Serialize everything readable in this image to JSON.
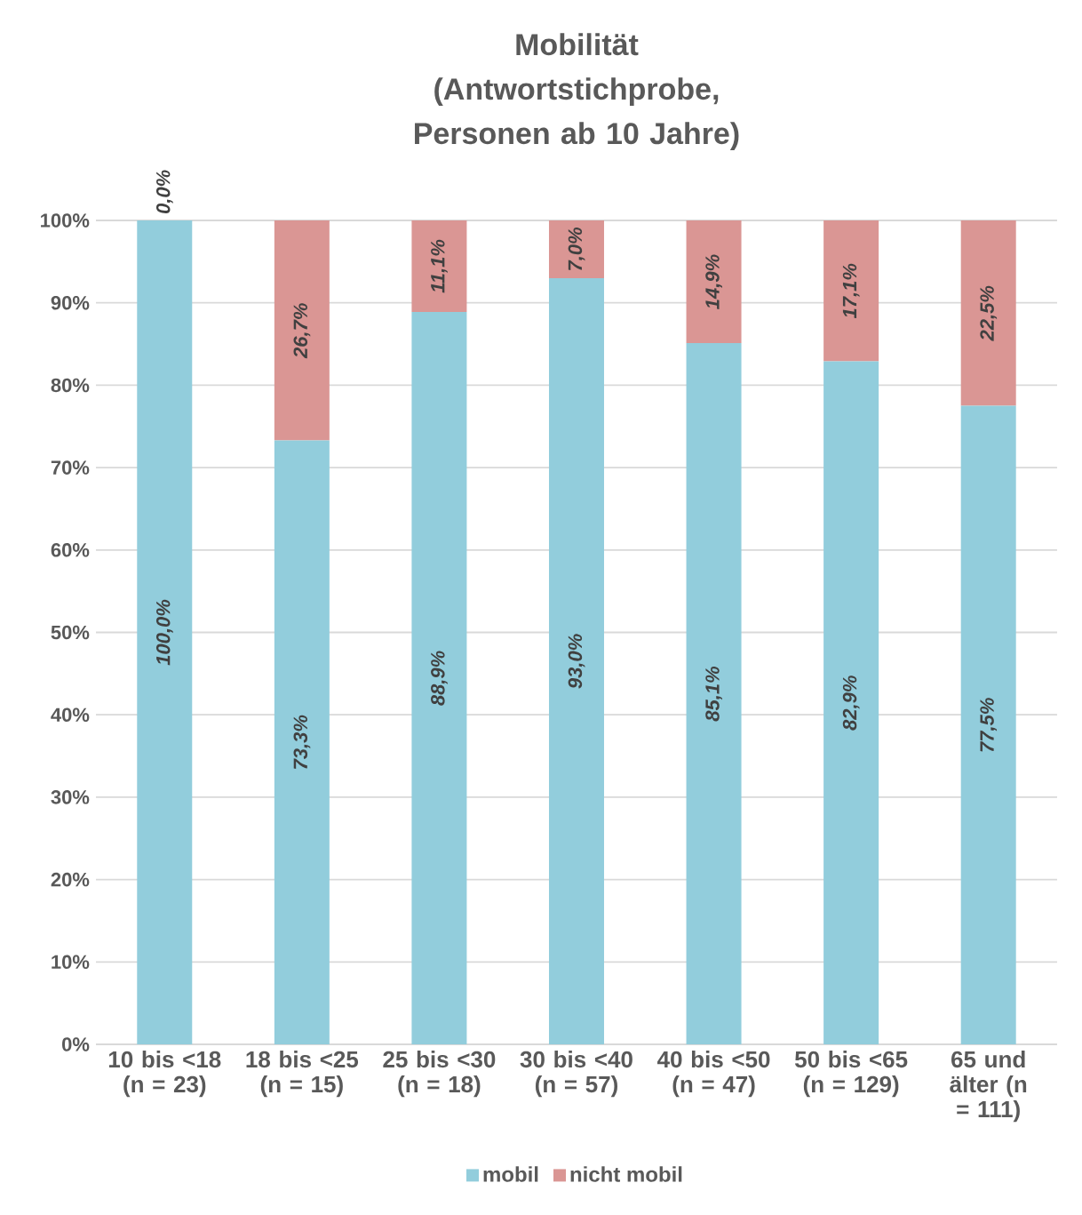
{
  "chart_data": {
    "type": "bar",
    "stacked": true,
    "title": "Mobilität (Antwortstichprobe, Personen ab 10 Jahre)",
    "categories": [
      "10 bis <18 (n = 23)",
      "18 bis <25 (n = 15)",
      "25 bis <30 (n = 18)",
      "30 bis <40 (n = 57)",
      "40 bis <50 (n = 47)",
      "50 bis <65 (n = 129)",
      "65 und älter (n = 111)"
    ],
    "series": [
      {
        "name": "mobil",
        "color": "#92cddc",
        "values": [
          100.0,
          73.3,
          88.9,
          93.0,
          85.1,
          82.9,
          77.5
        ],
        "value_labels": [
          "100,0%",
          "73,3%",
          "88,9%",
          "93,0%",
          "85,1%",
          "82,9%",
          "77,5%"
        ]
      },
      {
        "name": "nicht mobil",
        "color": "#da9694",
        "values": [
          0.0,
          26.7,
          11.1,
          7.0,
          14.9,
          17.1,
          22.5
        ],
        "value_labels": [
          "0,0%",
          "26,7%",
          "11,1%",
          "7,0%",
          "14,9%",
          "17,1%",
          "22,5%"
        ]
      }
    ],
    "ylim": [
      0,
      100
    ],
    "yticks": [
      {
        "value": 0,
        "label": "0%"
      },
      {
        "value": 10,
        "label": "10%"
      },
      {
        "value": 20,
        "label": "20%"
      },
      {
        "value": 30,
        "label": "30%"
      },
      {
        "value": 40,
        "label": "40%"
      },
      {
        "value": 50,
        "label": "50%"
      },
      {
        "value": 60,
        "label": "60%"
      },
      {
        "value": 70,
        "label": "70%"
      },
      {
        "value": 80,
        "label": "80%"
      },
      {
        "value": 90,
        "label": "90%"
      },
      {
        "value": 100,
        "label": "100%"
      }
    ],
    "grid": "y",
    "legend": "bottom"
  }
}
